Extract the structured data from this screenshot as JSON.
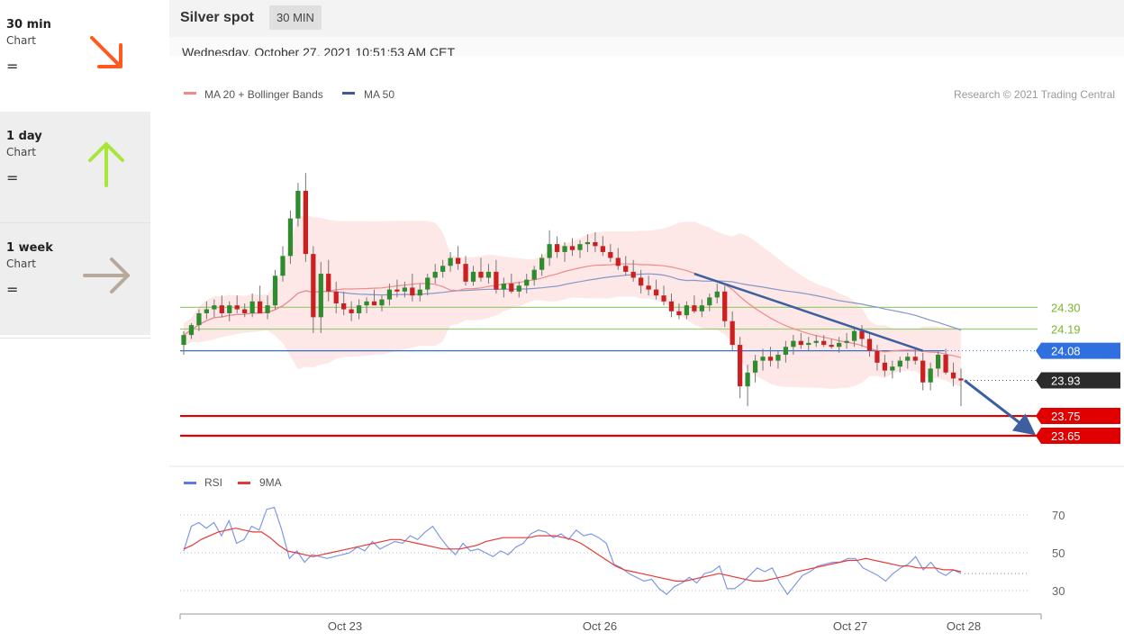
{
  "sidebar": {
    "items": [
      {
        "label": "30 min",
        "sub": "Chart",
        "signal": "=",
        "arrow": "down-right",
        "color": "#ff5a1f"
      },
      {
        "label": "1 day",
        "sub": "Chart",
        "signal": "=",
        "arrow": "up",
        "color": "#a8e63a"
      },
      {
        "label": "1 week",
        "sub": "Chart",
        "signal": "=",
        "arrow": "right",
        "color": "#b7a99c"
      }
    ]
  },
  "header": {
    "title": "Silver spot",
    "timeframe": "30 MIN"
  },
  "timestamp": "Wednesday, October 27, 2021 10:51:53 AM CET",
  "chart_data": [
    {
      "type": "candlestick",
      "legend": [
        {
          "name": "MA 20 + Bollinger Bands",
          "color": "#f08a8a"
        },
        {
          "name": "MA 50",
          "color": "#3c5a9a"
        }
      ],
      "copyright": "Research © 2021 Trading Central",
      "ylim": [
        23.6,
        25.2
      ],
      "x_ticks": [
        "Oct 23",
        "Oct 26",
        "Oct 27",
        "Oct 28"
      ],
      "levels": [
        {
          "value": 24.3,
          "label": "24.30",
          "kind": "resistance",
          "color": "#9acd78",
          "text_color": "#7db52d"
        },
        {
          "value": 24.19,
          "label": "24.19",
          "kind": "resistance",
          "color": "#9acd78",
          "text_color": "#7db52d"
        },
        {
          "value": 24.08,
          "label": "24.08",
          "kind": "pivot",
          "color": "#2f6fe0"
        },
        {
          "value": 23.93,
          "label": "23.93",
          "kind": "last",
          "color": "#2b2b2b"
        },
        {
          "value": 23.75,
          "label": "23.75",
          "kind": "support",
          "color": "#e00000"
        },
        {
          "value": 23.65,
          "label": "23.65",
          "kind": "support",
          "color": "#e00000"
        }
      ],
      "trendline": {
        "from": 24.47,
        "to": 24.08
      },
      "projection": {
        "from": 23.93,
        "to": 23.65
      },
      "candles_ohlc": [
        [
          24.11,
          24.18,
          24.06,
          24.16
        ],
        [
          24.16,
          24.22,
          24.14,
          24.21
        ],
        [
          24.21,
          24.29,
          24.18,
          24.27
        ],
        [
          24.27,
          24.33,
          24.24,
          24.29
        ],
        [
          24.29,
          24.34,
          24.25,
          24.31
        ],
        [
          24.31,
          24.36,
          24.25,
          24.27
        ],
        [
          24.27,
          24.33,
          24.23,
          24.31
        ],
        [
          24.31,
          24.36,
          24.27,
          24.29
        ],
        [
          24.29,
          24.32,
          24.25,
          24.27
        ],
        [
          24.27,
          24.37,
          24.25,
          24.33
        ],
        [
          24.33,
          24.41,
          24.31,
          24.27
        ],
        [
          24.27,
          24.36,
          24.24,
          24.31
        ],
        [
          24.31,
          24.49,
          24.29,
          24.46
        ],
        [
          24.46,
          24.61,
          24.43,
          24.56
        ],
        [
          24.56,
          24.79,
          24.52,
          24.75
        ],
        [
          24.75,
          24.93,
          24.71,
          24.89
        ],
        [
          24.89,
          24.98,
          24.53,
          24.57
        ],
        [
          24.57,
          24.61,
          24.17,
          24.25
        ],
        [
          24.25,
          24.53,
          24.17,
          24.47
        ],
        [
          24.47,
          24.54,
          24.33,
          24.38
        ],
        [
          24.38,
          24.43,
          24.27,
          24.32
        ],
        [
          24.32,
          24.38,
          24.26,
          24.29
        ],
        [
          24.29,
          24.33,
          24.23,
          24.27
        ],
        [
          24.27,
          24.34,
          24.24,
          24.31
        ],
        [
          24.31,
          24.35,
          24.27,
          24.33
        ],
        [
          24.33,
          24.39,
          24.31,
          24.31
        ],
        [
          24.31,
          24.36,
          24.28,
          24.34
        ],
        [
          24.34,
          24.42,
          24.31,
          24.39
        ],
        [
          24.39,
          24.44,
          24.35,
          24.38
        ],
        [
          24.38,
          24.43,
          24.35,
          24.4
        ],
        [
          24.4,
          24.47,
          24.33,
          24.36
        ],
        [
          24.36,
          24.42,
          24.33,
          24.39
        ],
        [
          24.39,
          24.47,
          24.36,
          24.45
        ],
        [
          24.45,
          24.52,
          24.42,
          24.48
        ],
        [
          24.48,
          24.54,
          24.45,
          24.51
        ],
        [
          24.51,
          24.58,
          24.48,
          24.55
        ],
        [
          24.55,
          24.61,
          24.49,
          24.52
        ],
        [
          24.52,
          24.56,
          24.41,
          24.43
        ],
        [
          24.43,
          24.51,
          24.41,
          24.48
        ],
        [
          24.48,
          24.55,
          24.43,
          24.45
        ],
        [
          24.45,
          24.52,
          24.42,
          24.48
        ],
        [
          24.48,
          24.54,
          24.37,
          24.39
        ],
        [
          24.39,
          24.45,
          24.35,
          24.42
        ],
        [
          24.42,
          24.47,
          24.37,
          24.38
        ],
        [
          24.38,
          24.43,
          24.35,
          24.41
        ],
        [
          24.41,
          24.47,
          24.37,
          24.44
        ],
        [
          24.44,
          24.51,
          24.41,
          24.49
        ],
        [
          24.49,
          24.57,
          24.46,
          24.55
        ],
        [
          24.55,
          24.69,
          24.51,
          24.62
        ],
        [
          24.62,
          24.66,
          24.55,
          24.58
        ],
        [
          24.58,
          24.63,
          24.53,
          24.61
        ],
        [
          24.61,
          24.65,
          24.56,
          24.59
        ],
        [
          24.59,
          24.64,
          24.55,
          24.62
        ],
        [
          24.62,
          24.67,
          24.58,
          24.63
        ],
        [
          24.63,
          24.68,
          24.58,
          24.61
        ],
        [
          24.61,
          24.66,
          24.56,
          24.58
        ],
        [
          24.58,
          24.62,
          24.53,
          24.55
        ],
        [
          24.55,
          24.6,
          24.49,
          24.51
        ],
        [
          24.51,
          24.56,
          24.46,
          24.48
        ],
        [
          24.48,
          24.54,
          24.43,
          24.45
        ],
        [
          24.45,
          24.49,
          24.37,
          24.41
        ],
        [
          24.41,
          24.46,
          24.36,
          24.39
        ],
        [
          24.39,
          24.44,
          24.34,
          24.36
        ],
        [
          24.36,
          24.41,
          24.31,
          24.33
        ],
        [
          24.33,
          24.37,
          24.25,
          24.28
        ],
        [
          24.28,
          24.32,
          24.24,
          24.26
        ],
        [
          24.26,
          24.33,
          24.24,
          24.31
        ],
        [
          24.31,
          24.36,
          24.27,
          24.28
        ],
        [
          24.28,
          24.34,
          24.25,
          24.31
        ],
        [
          24.31,
          24.37,
          24.28,
          24.35
        ],
        [
          24.35,
          24.42,
          24.32,
          24.38
        ],
        [
          24.38,
          24.41,
          24.2,
          24.23
        ],
        [
          24.23,
          24.28,
          24.08,
          24.11
        ],
        [
          24.11,
          24.15,
          23.84,
          23.9
        ],
        [
          23.9,
          24.01,
          23.8,
          23.97
        ],
        [
          23.97,
          24.06,
          23.92,
          24.03
        ],
        [
          24.03,
          24.09,
          23.98,
          24.05
        ],
        [
          24.05,
          24.1,
          24.0,
          24.03
        ],
        [
          24.03,
          24.08,
          23.99,
          24.06
        ],
        [
          24.06,
          24.13,
          24.02,
          24.1
        ],
        [
          24.1,
          24.16,
          24.06,
          24.13
        ],
        [
          24.13,
          24.17,
          24.09,
          24.11
        ],
        [
          24.11,
          24.15,
          24.08,
          24.12
        ],
        [
          24.12,
          24.16,
          24.1,
          24.13
        ],
        [
          24.13,
          24.16,
          24.1,
          24.11
        ],
        [
          24.11,
          24.14,
          24.09,
          24.1
        ],
        [
          24.1,
          24.15,
          24.07,
          24.12
        ],
        [
          24.12,
          24.17,
          24.09,
          24.13
        ],
        [
          24.13,
          24.2,
          24.1,
          24.18
        ],
        [
          24.18,
          24.21,
          24.1,
          24.14
        ],
        [
          24.14,
          24.17,
          24.05,
          24.08
        ],
        [
          24.08,
          24.11,
          23.98,
          24.02
        ],
        [
          24.02,
          24.06,
          23.95,
          23.98
        ],
        [
          23.98,
          24.03,
          23.94,
          24.0
        ],
        [
          24.0,
          24.05,
          23.97,
          24.03
        ],
        [
          24.03,
          24.07,
          23.99,
          24.05
        ],
        [
          24.05,
          24.09,
          24.01,
          24.03
        ],
        [
          24.03,
          24.07,
          23.88,
          23.92
        ],
        [
          23.92,
          24.02,
          23.88,
          23.99
        ],
        [
          23.99,
          24.08,
          23.95,
          24.06
        ],
        [
          24.06,
          24.09,
          23.96,
          23.97
        ],
        [
          23.97,
          24.02,
          23.9,
          23.94
        ],
        [
          23.94,
          23.99,
          23.8,
          23.93
        ]
      ]
    },
    {
      "type": "line",
      "legend": [
        {
          "name": "RSI",
          "color": "#5b7be0"
        },
        {
          "name": "9MA",
          "color": "#e53935"
        }
      ],
      "ylim": [
        20,
        80
      ],
      "y_ticks": [
        70,
        50,
        30
      ],
      "series": [
        {
          "name": "RSI",
          "values": [
            51,
            64,
            66,
            63,
            66,
            59,
            67,
            55,
            57,
            64,
            62,
            73,
            74,
            62,
            47,
            51,
            45,
            49,
            48,
            47,
            48,
            49,
            50,
            53,
            51,
            56,
            52,
            54,
            56,
            55,
            59,
            57,
            61,
            64,
            58,
            53,
            49,
            55,
            51,
            52,
            50,
            48,
            51,
            49,
            53,
            55,
            60,
            62,
            61,
            58,
            60,
            57,
            62,
            59,
            60,
            58,
            55,
            44,
            42,
            39,
            37,
            35,
            36,
            31,
            28,
            32,
            34,
            37,
            34,
            39,
            40,
            43,
            31,
            31,
            34,
            38,
            42,
            40,
            42,
            34,
            28,
            33,
            38,
            40,
            43,
            44,
            45,
            45,
            47,
            47,
            42,
            40,
            38,
            35,
            39,
            42,
            44,
            48,
            41,
            45,
            40,
            38,
            41,
            39
          ]
        },
        {
          "name": "9MA",
          "values": [
            52,
            54,
            57,
            59,
            61,
            62,
            63,
            62,
            61,
            61,
            58,
            54,
            51,
            50,
            49,
            48,
            49,
            50,
            51,
            52,
            53,
            54,
            55,
            56,
            57,
            57,
            56,
            55,
            54,
            53,
            52,
            52,
            52,
            53,
            54,
            56,
            57,
            58,
            58,
            58,
            58,
            59,
            59,
            59,
            58,
            57,
            55,
            52,
            49,
            46,
            43,
            41,
            40,
            39,
            38,
            37,
            36,
            35,
            35,
            36,
            37,
            38,
            39,
            38,
            37,
            36,
            35,
            35,
            36,
            37,
            38,
            40,
            41,
            42,
            43,
            44,
            45,
            46,
            46,
            47,
            46,
            45,
            44,
            43,
            43,
            42,
            42,
            42,
            41,
            41,
            40
          ]
        }
      ]
    }
  ]
}
